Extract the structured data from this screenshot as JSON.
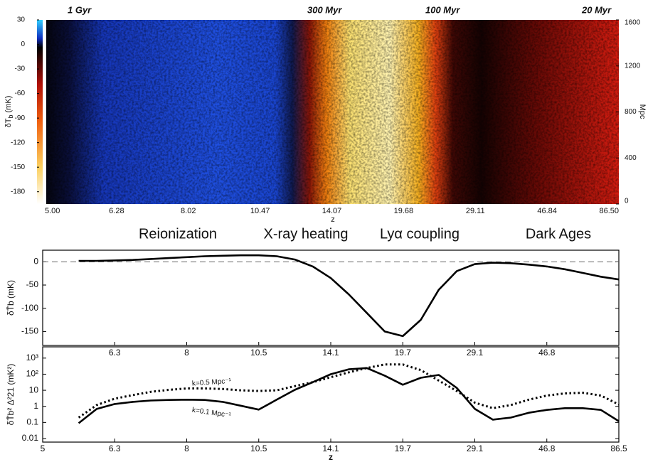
{
  "chart_data": [
    {
      "type": "heatmap",
      "annotations": [
        "1 Gyr",
        "300 Myr",
        "100 Myr",
        "20 Myr"
      ],
      "categories": [
        "5.00",
        "6.28",
        "8.02",
        "10.47",
        "14.07",
        "19.68",
        "29.11",
        "46.84",
        "86.50"
      ],
      "xlabel": "z",
      "colorbar_label": {
        "main": "δT",
        "sub": "b",
        "unit": " (mK)"
      },
      "clim": [
        -195,
        30
      ],
      "cticks": [
        30,
        0,
        -30,
        -60,
        -90,
        -120,
        -150,
        -180
      ],
      "ylabel": "Mpc",
      "ylim": [
        0,
        1600
      ],
      "yticks": [
        0,
        400,
        800,
        1200,
        1600
      ]
    },
    {
      "type": "line",
      "ylabel": "δT̄b (mK)",
      "categories": [
        null,
        null,
        null,
        null,
        "6.3",
        null,
        null,
        null,
        "8",
        null,
        null,
        null,
        "10.5",
        null,
        null,
        null,
        "14.1",
        null,
        null,
        null,
        "19.7",
        null,
        null,
        null,
        "29.1",
        null,
        null,
        null,
        "46.8",
        null,
        null,
        null,
        null
      ],
      "values": [
        null,
        null,
        2,
        2,
        3,
        4,
        6,
        8,
        10,
        12,
        13,
        14,
        14,
        12,
        5,
        -10,
        -35,
        -70,
        -110,
        -150,
        -160,
        -125,
        -60,
        -20,
        -5,
        -2,
        -3,
        -6,
        -10,
        -16,
        -24,
        -32,
        -38
      ],
      "color": "#000000",
      "reference_line": 0,
      "ylim": [
        -180,
        25
      ],
      "yticks": [
        0,
        -50,
        -100,
        -150
      ]
    },
    {
      "type": "line",
      "log_scale": true,
      "xlabel": "z",
      "ylabel": "δT̄b² Δ²21 (mK²)",
      "categories": [
        "5",
        null,
        null,
        null,
        "6.3",
        null,
        null,
        null,
        "8",
        null,
        null,
        null,
        "10.5",
        null,
        null,
        null,
        "14.1",
        null,
        null,
        null,
        "19.7",
        null,
        null,
        null,
        "29.1",
        null,
        null,
        null,
        "46.8",
        null,
        null,
        null,
        "86.5"
      ],
      "series": [
        {
          "name": "k=0.1 Mpc⁻¹",
          "color": "#000000",
          "style": "solid",
          "values": [
            null,
            null,
            0.09,
            0.69,
            1.4,
            1.9,
            2.3,
            2.5,
            2.6,
            2.5,
            1.9,
            1.1,
            0.63,
            2.6,
            10.6,
            32,
            100,
            200,
            240,
            80,
            22,
            60,
            90,
            14,
            0.7,
            0.15,
            0.2,
            0.4,
            0.6,
            0.77,
            0.77,
            0.6,
            0.12
          ]
        },
        {
          "name": "k=0.5 Mpc⁻¹",
          "color": "#000000",
          "style": "dotted",
          "values": [
            null,
            null,
            0.2,
            1.2,
            3,
            5,
            8,
            10.6,
            13,
            13,
            12,
            10,
            9,
            10,
            18,
            32,
            65,
            130,
            240,
            400,
            400,
            180,
            40,
            9,
            1.7,
            0.77,
            1.2,
            2.6,
            4.7,
            6.4,
            7,
            4.7,
            1.3
          ]
        }
      ],
      "ylim": [
        0.006,
        5000
      ],
      "yticks": [
        0.01,
        0.1,
        1,
        10,
        {
          "value": 100,
          "label": "10²"
        },
        {
          "value": 1000,
          "label": "10³"
        }
      ]
    }
  ],
  "phase_labels": [
    "Reionization",
    "X-ray heating",
    "Lyα coupling",
    "Dark Ages"
  ]
}
